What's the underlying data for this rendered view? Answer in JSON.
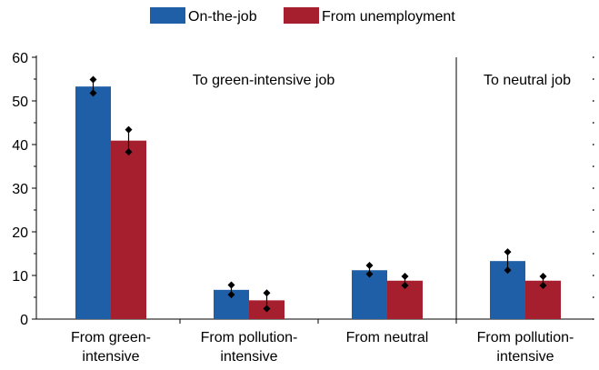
{
  "chart_data": {
    "type": "bar",
    "categories": [
      [
        "From green-",
        "intensive"
      ],
      [
        "From pollution-",
        "intensive"
      ],
      [
        "From neutral"
      ],
      [
        "From pollution-",
        "intensive"
      ]
    ],
    "panels": [
      {
        "label": "To green-intensive job",
        "categories": [
          0,
          1,
          2
        ]
      },
      {
        "label": "To neutral job",
        "categories": [
          3
        ]
      }
    ],
    "series": [
      {
        "name": "On-the-job",
        "color": "#1f5fa8",
        "values": [
          53.3,
          6.7,
          11.2,
          13.3
        ],
        "error_low": [
          51.8,
          5.6,
          10.3,
          11.2
        ],
        "error_high": [
          54.9,
          7.8,
          12.3,
          15.4
        ]
      },
      {
        "name": "From unemployment",
        "color": "#a61f2e",
        "values": [
          40.9,
          4.3,
          8.8,
          8.8
        ],
        "error_low": [
          38.3,
          2.4,
          7.7,
          7.7
        ],
        "error_high": [
          43.4,
          6.0,
          9.8,
          9.8
        ]
      }
    ],
    "y_ticks": [
      0,
      10,
      20,
      30,
      40,
      50,
      60
    ],
    "ylim": [
      0,
      60
    ],
    "legend_position": "top-center",
    "grid": false
  }
}
